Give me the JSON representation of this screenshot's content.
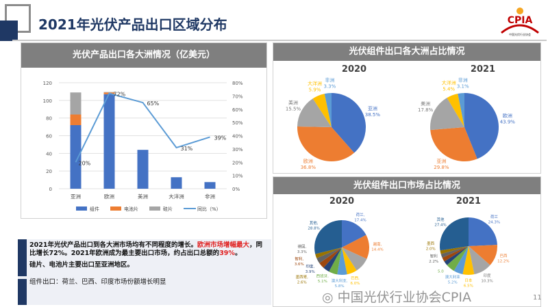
{
  "header": {
    "title": "2021年光伏产品出口区域分布",
    "logo_text": "CPIA",
    "logo_sub": "中国光伏行业协会"
  },
  "left_panel": {
    "title": "光伏产品出口各大洲情况（亿美元）"
  },
  "chart_data": [
    {
      "type": "bar",
      "subtype": "stacked bar + line (secondary axis)",
      "categories": [
        "亚洲",
        "欧洲",
        "美洲",
        "大洋洲",
        "非洲"
      ],
      "series": [
        {
          "name": "组件",
          "values": [
            72,
            107,
            44,
            13,
            7.5
          ],
          "color": "#4472c4"
        },
        {
          "name": "电池片",
          "values": [
            12,
            2,
            0,
            0,
            0
          ],
          "color": "#ed7d31"
        },
        {
          "name": "硅片",
          "values": [
            25,
            0.5,
            0,
            0,
            0
          ],
          "color": "#a5a5a5"
        },
        {
          "name": "同比（%）",
          "type": "line",
          "axis": "right",
          "values": [
            20,
            72,
            65,
            31,
            39
          ],
          "labels": [
            "20%",
            "72%",
            "65%",
            "31%",
            "39%"
          ],
          "color": "#5b9bd5"
        }
      ],
      "ylim": [
        0,
        120
      ],
      "yticks": [
        "0",
        "20",
        "40",
        "60",
        "80",
        "100",
        "120"
      ],
      "y2lim": [
        0,
        80
      ],
      "y2ticks": [
        "0%",
        "10%",
        "20%",
        "30%",
        "40%",
        "50%",
        "60%",
        "70%",
        "80%"
      ],
      "grid": true,
      "legend": "bottom"
    },
    {
      "type": "pie",
      "title": "2020",
      "slices": [
        {
          "label": "亚洲",
          "value": 38.5,
          "text": "38.5%",
          "color": "#4472c4"
        },
        {
          "label": "欧洲",
          "value": 36.8,
          "text": "36.8%",
          "color": "#ed7d31"
        },
        {
          "label": "美洲",
          "value": 15.5,
          "text": "15.5%",
          "color": "#a5a5a5"
        },
        {
          "label": "大洋洲",
          "value": 5.9,
          "text": "5.9%",
          "color": "#ffc000"
        },
        {
          "label": "非洲",
          "value": 3.3,
          "text": "3.3%",
          "color": "#5b9bd5"
        }
      ]
    },
    {
      "type": "pie",
      "title": "2021",
      "slices": [
        {
          "label": "欧洲",
          "value": 43.9,
          "text": "43.9%",
          "color": "#4472c4"
        },
        {
          "label": "亚洲",
          "value": 29.8,
          "text": "29.8%",
          "color": "#ed7d31"
        },
        {
          "label": "美洲",
          "value": 17.8,
          "text": "17.8%",
          "color": "#a5a5a5"
        },
        {
          "label": "大洋洲",
          "value": 5.4,
          "text": "5.4%",
          "color": "#ffc000"
        },
        {
          "label": "非洲",
          "value": 3.1,
          "text": "3.1%",
          "color": "#5b9bd5"
        }
      ]
    },
    {
      "type": "pie",
      "title": "2020",
      "slices": [
        {
          "label": "荷兰,",
          "value": 17.4,
          "text": "17.4%",
          "color": "#4472c4"
        },
        {
          "label": "越南,",
          "value": 14.4,
          "text": "14.4%",
          "color": "#ed7d31"
        },
        {
          "label": "",
          "value": 9.1,
          "text": "",
          "color": "#a5a5a5"
        },
        {
          "label": "巴西,",
          "value": 6.0,
          "text": "6.0%",
          "color": "#ffc000"
        },
        {
          "label": "澳大利亚,",
          "value": 5.8,
          "text": "5.8%",
          "color": "#5b9bd5"
        },
        {
          "label": "西班牙,",
          "value": 5.1,
          "text": "5.1%",
          "color": "#70ad47"
        },
        {
          "label": "印度,",
          "value": 3.9,
          "text": "3.9%",
          "color": "#264478"
        },
        {
          "label": "智利,",
          "value": 3.6,
          "text": "3.6%",
          "color": "#9e480e"
        },
        {
          "label": "德国,",
          "value": 3.3,
          "text": "3.3%",
          "color": "#636363"
        },
        {
          "label": "墨西哥,",
          "value": 2.6,
          "text": "2.6%",
          "color": "#997300"
        },
        {
          "label": "其他,",
          "value": 28.8,
          "text": "28.8%",
          "color": "#255e91"
        }
      ]
    },
    {
      "type": "pie",
      "title": "2021",
      "slices": [
        {
          "label": "荷兰",
          "value": 24.3,
          "text": "24.3%",
          "color": "#4472c4"
        },
        {
          "label": "巴西",
          "value": 12.2,
          "text": "12.2%",
          "color": "#ed7d31"
        },
        {
          "label": "印度",
          "value": 10.3,
          "text": "10.3%",
          "color": "#a5a5a5"
        },
        {
          "label": "日本",
          "value": 6.5,
          "text": "6.5%",
          "color": "#ffc000"
        },
        {
          "label": "澳大利亚",
          "value": 5.2,
          "text": "5.2%",
          "color": "#5b9bd5"
        },
        {
          "label": "",
          "value": 5.0,
          "text": "5.0",
          "color": "#70ad47"
        },
        {
          "label": "",
          "value": 2.5,
          "text": "",
          "color": "#264478"
        },
        {
          "label": "",
          "value": 2.4,
          "text": "",
          "color": "#9e480e"
        },
        {
          "label": "智利",
          "value": 2.2,
          "text": "2.2%",
          "color": "#636363"
        },
        {
          "label": "墨西",
          "value": 2.0,
          "text": "2.0%",
          "color": "#997300"
        },
        {
          "label": "其他",
          "value": 27.4,
          "text": "27.4%",
          "color": "#255e91"
        }
      ]
    }
  ],
  "right_top": {
    "title": "光伏组件出口各大洲占比情况"
  },
  "right_bottom": {
    "title": "光伏组件出口市场占比情况"
  },
  "notes": {
    "p1a": "2021年光伏产品出口到各大洲市场均有不同程度的增长。",
    "p1b": "欧洲市场增幅最大",
    "p1c": "，同比增长72%。2021年欧洲成为最主要出口市场，约占出口总额的",
    "p1d": "39%",
    "p1e": "。",
    "p2": "硅片、电池片主要出口至亚洲地区。",
    "p3": "组件出口：荷兰、巴西、印度市场份额增长明显"
  },
  "watermark": "中国光伏行业协会CPIA",
  "page_number": "11"
}
